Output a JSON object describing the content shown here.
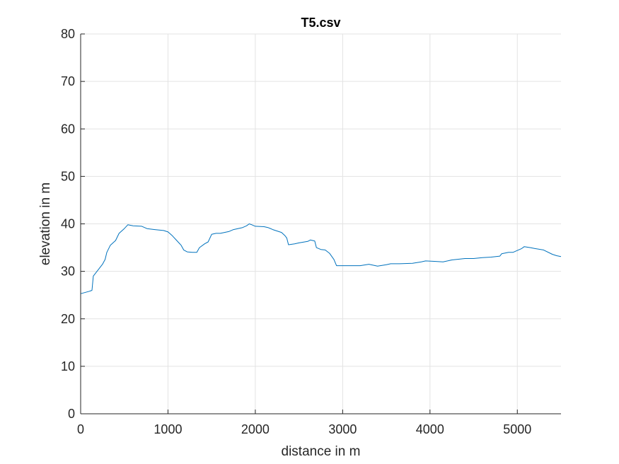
{
  "chart_data": {
    "type": "line",
    "title": "T5.csv",
    "xlabel": "distance in m",
    "ylabel": "elevation in m",
    "xlim": [
      0,
      5500
    ],
    "ylim": [
      0,
      80
    ],
    "grid": true,
    "x_ticks": [
      0,
      1000,
      2000,
      3000,
      4000,
      5000
    ],
    "y_ticks": [
      0,
      10,
      20,
      30,
      40,
      50,
      60,
      70,
      80
    ],
    "series": [
      {
        "color": "#0072BD",
        "points": [
          [
            0,
            25.3
          ],
          [
            60,
            25.6
          ],
          [
            100,
            25.8
          ],
          [
            130,
            26.0
          ],
          [
            145,
            29.0
          ],
          [
            200,
            30.3
          ],
          [
            250,
            31.5
          ],
          [
            280,
            32.5
          ],
          [
            300,
            34.0
          ],
          [
            340,
            35.5
          ],
          [
            400,
            36.5
          ],
          [
            440,
            38.0
          ],
          [
            500,
            39.0
          ],
          [
            540,
            39.8
          ],
          [
            600,
            39.6
          ],
          [
            700,
            39.5
          ],
          [
            760,
            39.0
          ],
          [
            850,
            38.8
          ],
          [
            950,
            38.6
          ],
          [
            1000,
            38.3
          ],
          [
            1050,
            37.5
          ],
          [
            1100,
            36.5
          ],
          [
            1150,
            35.5
          ],
          [
            1180,
            34.5
          ],
          [
            1220,
            34.1
          ],
          [
            1280,
            34.0
          ],
          [
            1330,
            34.0
          ],
          [
            1360,
            35.0
          ],
          [
            1420,
            35.8
          ],
          [
            1460,
            36.2
          ],
          [
            1500,
            37.8
          ],
          [
            1550,
            38.0
          ],
          [
            1600,
            38.0
          ],
          [
            1700,
            38.4
          ],
          [
            1750,
            38.8
          ],
          [
            1800,
            39.0
          ],
          [
            1850,
            39.2
          ],
          [
            1900,
            39.6
          ],
          [
            1930,
            40.0
          ],
          [
            1960,
            39.8
          ],
          [
            2000,
            39.5
          ],
          [
            2100,
            39.4
          ],
          [
            2150,
            39.2
          ],
          [
            2200,
            38.8
          ],
          [
            2300,
            38.2
          ],
          [
            2340,
            37.5
          ],
          [
            2360,
            37.0
          ],
          [
            2380,
            35.6
          ],
          [
            2450,
            35.8
          ],
          [
            2500,
            36.0
          ],
          [
            2600,
            36.3
          ],
          [
            2630,
            36.6
          ],
          [
            2680,
            36.4
          ],
          [
            2700,
            35.0
          ],
          [
            2750,
            34.6
          ],
          [
            2800,
            34.5
          ],
          [
            2850,
            33.8
          ],
          [
            2900,
            32.5
          ],
          [
            2930,
            31.2
          ],
          [
            3000,
            31.2
          ],
          [
            3100,
            31.2
          ],
          [
            3200,
            31.2
          ],
          [
            3300,
            31.5
          ],
          [
            3400,
            31.1
          ],
          [
            3500,
            31.4
          ],
          [
            3550,
            31.6
          ],
          [
            3650,
            31.6
          ],
          [
            3800,
            31.7
          ],
          [
            3900,
            32.0
          ],
          [
            3950,
            32.2
          ],
          [
            4050,
            32.1
          ],
          [
            4150,
            32.0
          ],
          [
            4250,
            32.4
          ],
          [
            4400,
            32.7
          ],
          [
            4500,
            32.7
          ],
          [
            4600,
            32.9
          ],
          [
            4700,
            33.0
          ],
          [
            4800,
            33.2
          ],
          [
            4820,
            33.7
          ],
          [
            4900,
            34.0
          ],
          [
            4950,
            34.0
          ],
          [
            5000,
            34.4
          ],
          [
            5050,
            34.8
          ],
          [
            5080,
            35.2
          ],
          [
            5150,
            35.0
          ],
          [
            5200,
            34.8
          ],
          [
            5300,
            34.5
          ],
          [
            5400,
            33.6
          ],
          [
            5450,
            33.3
          ],
          [
            5500,
            33.1
          ]
        ]
      }
    ]
  }
}
